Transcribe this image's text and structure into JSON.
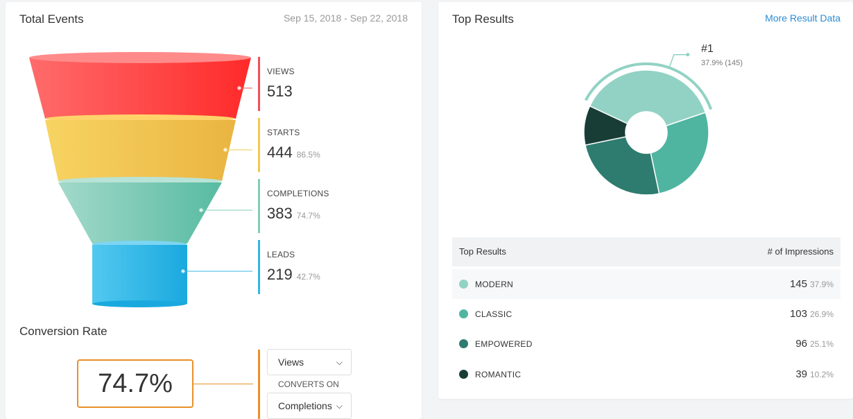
{
  "total_events": {
    "title": "Total Events",
    "date_range": "Sep 15, 2018 - Sep 22, 2018",
    "stages": [
      {
        "label": "VIEWS",
        "value": "513",
        "pct": "",
        "color": "#ef4f5a"
      },
      {
        "label": "STARTS",
        "value": "444",
        "pct": "86.5%",
        "color": "#f2c84f"
      },
      {
        "label": "COMPLETIONS",
        "value": "383",
        "pct": "74.7%",
        "color": "#83cdb8"
      },
      {
        "label": "LEADS",
        "value": "219",
        "pct": "42.7%",
        "color": "#35b6e6"
      }
    ]
  },
  "conversion": {
    "title": "Conversion Rate",
    "value": "74.7%",
    "from_select": "Views",
    "converts_on": "CONVERTS ON",
    "to_select": "Completions",
    "accent": "#e8902a"
  },
  "top_results": {
    "title": "Top Results",
    "more_link": "More Result Data",
    "highlight_label": "#1",
    "highlight_sub": "37.9% (145)",
    "table": {
      "col_name": "Top Results",
      "col_impressions": "# of Impressions",
      "rows": [
        {
          "name": "MODERN",
          "count": "145",
          "pct": "37.9%",
          "color": "#92d2c4"
        },
        {
          "name": "CLASSIC",
          "count": "103",
          "pct": "26.9%",
          "color": "#4fb5a1"
        },
        {
          "name": "EMPOWERED",
          "count": "96",
          "pct": "25.1%",
          "color": "#2e7c6f"
        },
        {
          "name": "ROMANTIC",
          "count": "39",
          "pct": "10.2%",
          "color": "#183d37"
        }
      ]
    }
  },
  "chart_data": {
    "type": "pie",
    "categories": [
      "MODERN",
      "CLASSIC",
      "EMPOWERED",
      "ROMANTIC"
    ],
    "values": [
      145,
      103,
      96,
      39
    ],
    "colors": [
      "#92d2c4",
      "#4fb5a1",
      "#2e7c6f",
      "#183d37"
    ],
    "title": "",
    "donut": true
  }
}
